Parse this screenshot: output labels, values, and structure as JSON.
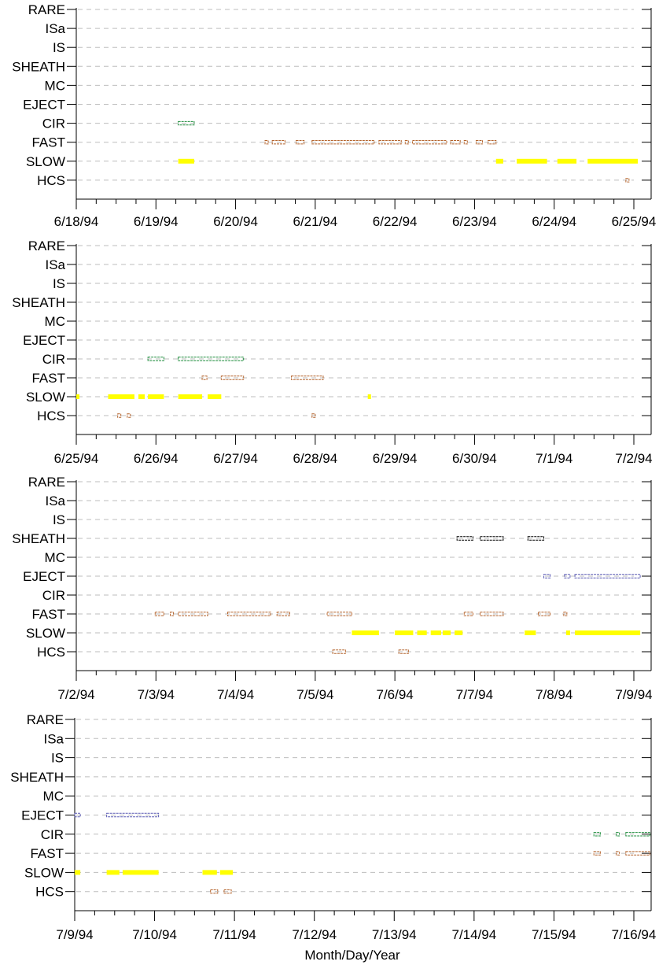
{
  "chart_data": {
    "type": "scatter",
    "xlabel": "Month/Day/Year",
    "categories": [
      "RARE",
      "ISa",
      "IS",
      "SHEATH",
      "MC",
      "EJECT",
      "CIR",
      "FAST",
      "SLOW",
      "HCS"
    ],
    "colors": {
      "CIR": "#1e8c3c",
      "FAST": "#b4642d",
      "SLOW": "#ffff00",
      "HCS": "#b4642d",
      "EJECT": "#5a5ab4",
      "SHEATH": "#000000"
    },
    "grid": true,
    "panels": [
      {
        "xlim": [
          "6/18/94",
          "6/25/94"
        ],
        "tick_labels": [
          "6/18/94",
          "6/19/94",
          "6/20/94",
          "6/21/94",
          "6/22/94",
          "6/23/94",
          "6/24/94",
          "6/25/94"
        ],
        "intervals": [
          {
            "category": "CIR",
            "start": 1.28,
            "end": 1.48
          },
          {
            "category": "FAST",
            "start": 2.37,
            "end": 2.4
          },
          {
            "category": "FAST",
            "start": 2.46,
            "end": 2.62
          },
          {
            "category": "FAST",
            "start": 2.76,
            "end": 2.86
          },
          {
            "category": "FAST",
            "start": 2.96,
            "end": 3.74
          },
          {
            "category": "FAST",
            "start": 3.8,
            "end": 4.08
          },
          {
            "category": "FAST",
            "start": 4.13,
            "end": 4.16
          },
          {
            "category": "FAST",
            "start": 4.22,
            "end": 4.65
          },
          {
            "category": "FAST",
            "start": 4.7,
            "end": 4.82
          },
          {
            "category": "FAST",
            "start": 4.87,
            "end": 4.9
          },
          {
            "category": "FAST",
            "start": 5.02,
            "end": 5.1
          },
          {
            "category": "FAST",
            "start": 5.17,
            "end": 5.27
          },
          {
            "category": "SLOW",
            "start": 1.28,
            "end": 1.48
          },
          {
            "category": "SLOW",
            "start": 5.27,
            "end": 5.36
          },
          {
            "category": "SLOW",
            "start": 5.53,
            "end": 5.91
          },
          {
            "category": "SLOW",
            "start": 6.04,
            "end": 6.28
          },
          {
            "category": "SLOW",
            "start": 6.42,
            "end": 7.05
          },
          {
            "category": "HCS",
            "start": 6.9,
            "end": 6.93
          }
        ]
      },
      {
        "xlim": [
          "6/25/94",
          "7/2/94"
        ],
        "tick_labels": [
          "6/25/94",
          "6/26/94",
          "6/27/94",
          "6/28/94",
          "6/29/94",
          "6/30/94",
          "7/1/94",
          "7/2/94"
        ],
        "intervals": [
          {
            "category": "CIR",
            "start": 0.9,
            "end": 1.1
          },
          {
            "category": "CIR",
            "start": 1.28,
            "end": 2.1
          },
          {
            "category": "FAST",
            "start": 1.58,
            "end": 1.64
          },
          {
            "category": "FAST",
            "start": 1.82,
            "end": 2.1
          },
          {
            "category": "FAST",
            "start": 2.7,
            "end": 3.1
          },
          {
            "category": "SLOW",
            "start": 0.0,
            "end": 0.03
          },
          {
            "category": "SLOW",
            "start": 0.4,
            "end": 0.73
          },
          {
            "category": "SLOW",
            "start": 0.78,
            "end": 0.86
          },
          {
            "category": "SLOW",
            "start": 0.9,
            "end": 1.1
          },
          {
            "category": "SLOW",
            "start": 1.28,
            "end": 1.58
          },
          {
            "category": "SLOW",
            "start": 1.65,
            "end": 1.82
          },
          {
            "category": "SLOW",
            "start": 3.66,
            "end": 3.7
          },
          {
            "category": "HCS",
            "start": 0.52,
            "end": 0.55
          },
          {
            "category": "HCS",
            "start": 0.64,
            "end": 0.67
          },
          {
            "category": "HCS",
            "start": 2.96,
            "end": 2.99
          }
        ]
      },
      {
        "xlim": [
          "7/2/94",
          "7/9/94"
        ],
        "tick_labels": [
          "7/2/94",
          "7/3/94",
          "7/4/94",
          "7/5/94",
          "7/6/94",
          "7/7/94",
          "7/8/94",
          "7/9/94"
        ],
        "intervals": [
          {
            "category": "SHEATH",
            "start": 4.78,
            "end": 4.98
          },
          {
            "category": "SHEATH",
            "start": 5.07,
            "end": 5.36
          },
          {
            "category": "SHEATH",
            "start": 5.67,
            "end": 5.87
          },
          {
            "category": "EJECT",
            "start": 5.87,
            "end": 5.95
          },
          {
            "category": "EJECT",
            "start": 6.13,
            "end": 6.2
          },
          {
            "category": "EJECT",
            "start": 6.26,
            "end": 7.08
          },
          {
            "category": "FAST",
            "start": 0.99,
            "end": 1.1
          },
          {
            "category": "FAST",
            "start": 1.18,
            "end": 1.22
          },
          {
            "category": "FAST",
            "start": 1.28,
            "end": 1.65
          },
          {
            "category": "FAST",
            "start": 1.9,
            "end": 2.44
          },
          {
            "category": "FAST",
            "start": 2.52,
            "end": 2.68
          },
          {
            "category": "FAST",
            "start": 3.15,
            "end": 3.46
          },
          {
            "category": "FAST",
            "start": 4.87,
            "end": 4.98
          },
          {
            "category": "FAST",
            "start": 5.07,
            "end": 5.36
          },
          {
            "category": "FAST",
            "start": 5.8,
            "end": 5.95
          },
          {
            "category": "FAST",
            "start": 6.12,
            "end": 6.15
          },
          {
            "category": "SLOW",
            "start": 3.46,
            "end": 3.8
          },
          {
            "category": "SLOW",
            "start": 4.0,
            "end": 4.23
          },
          {
            "category": "SLOW",
            "start": 4.28,
            "end": 4.4
          },
          {
            "category": "SLOW",
            "start": 4.45,
            "end": 4.58
          },
          {
            "category": "SLOW",
            "start": 4.6,
            "end": 4.7
          },
          {
            "category": "SLOW",
            "start": 4.75,
            "end": 4.85
          },
          {
            "category": "SLOW",
            "start": 5.63,
            "end": 5.77
          },
          {
            "category": "SLOW",
            "start": 6.15,
            "end": 6.2
          },
          {
            "category": "SLOW",
            "start": 6.26,
            "end": 7.08
          },
          {
            "category": "HCS",
            "start": 3.22,
            "end": 3.38
          },
          {
            "category": "HCS",
            "start": 4.05,
            "end": 4.17
          }
        ]
      },
      {
        "xlim": [
          "7/9/94",
          "7/16/94"
        ],
        "tick_labels": [
          "7/9/94",
          "7/10/94",
          "7/11/94",
          "7/12/94",
          "7/13/94",
          "7/14/94",
          "7/15/94",
          "7/16/94"
        ],
        "intervals": [
          {
            "category": "EJECT",
            "start": 0.0,
            "end": 0.07
          },
          {
            "category": "EJECT",
            "start": 0.4,
            "end": 1.05
          },
          {
            "category": "CIR",
            "start": 6.5,
            "end": 6.58
          },
          {
            "category": "CIR",
            "start": 6.78,
            "end": 6.81
          },
          {
            "category": "CIR",
            "start": 6.9,
            "end": 7.2
          },
          {
            "category": "FAST",
            "start": 6.5,
            "end": 6.58
          },
          {
            "category": "FAST",
            "start": 6.78,
            "end": 6.81
          },
          {
            "category": "FAST",
            "start": 6.9,
            "end": 7.2
          },
          {
            "category": "SLOW",
            "start": 0.0,
            "end": 0.07
          },
          {
            "category": "SLOW",
            "start": 0.4,
            "end": 0.56
          },
          {
            "category": "SLOW",
            "start": 0.6,
            "end": 1.05
          },
          {
            "category": "SLOW",
            "start": 1.6,
            "end": 1.78
          },
          {
            "category": "SLOW",
            "start": 1.82,
            "end": 1.98
          },
          {
            "category": "HCS",
            "start": 1.7,
            "end": 1.79
          },
          {
            "category": "HCS",
            "start": 1.87,
            "end": 1.96
          }
        ]
      }
    ]
  }
}
